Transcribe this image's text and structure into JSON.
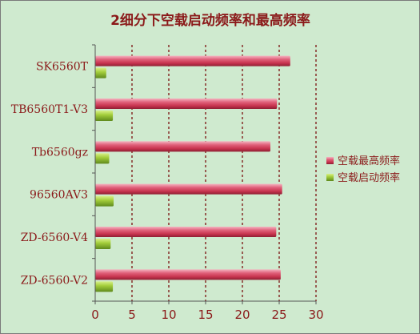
{
  "chart_data": {
    "type": "bar",
    "orientation": "horizontal",
    "title": "2细分下空载启动频率和最高频率",
    "categories": [
      "SK6560T",
      "TB6560T1-V3",
      "Tb6560gz",
      "96560AV3",
      "ZD-6560-V4",
      "ZD-6560-V2"
    ],
    "series": [
      {
        "name": "空载最高频率",
        "values": [
          26.5,
          24.7,
          23.8,
          25.4,
          24.6,
          25.2
        ],
        "color": "#c8344f"
      },
      {
        "name": "空载启动频率",
        "values": [
          1.5,
          2.4,
          1.9,
          2.5,
          2.1,
          2.4
        ],
        "color": "#8fbf2e"
      }
    ],
    "xlim": [
      0,
      30
    ],
    "xticks": [
      "0",
      "5",
      "10",
      "15",
      "20",
      "25",
      "30"
    ],
    "grid": true,
    "legend_position": "right",
    "colors": {
      "background": "#cfeacf",
      "title": "#8b1a1a",
      "axis_text": "#8b1a1a",
      "grid": "#7a1010"
    }
  }
}
